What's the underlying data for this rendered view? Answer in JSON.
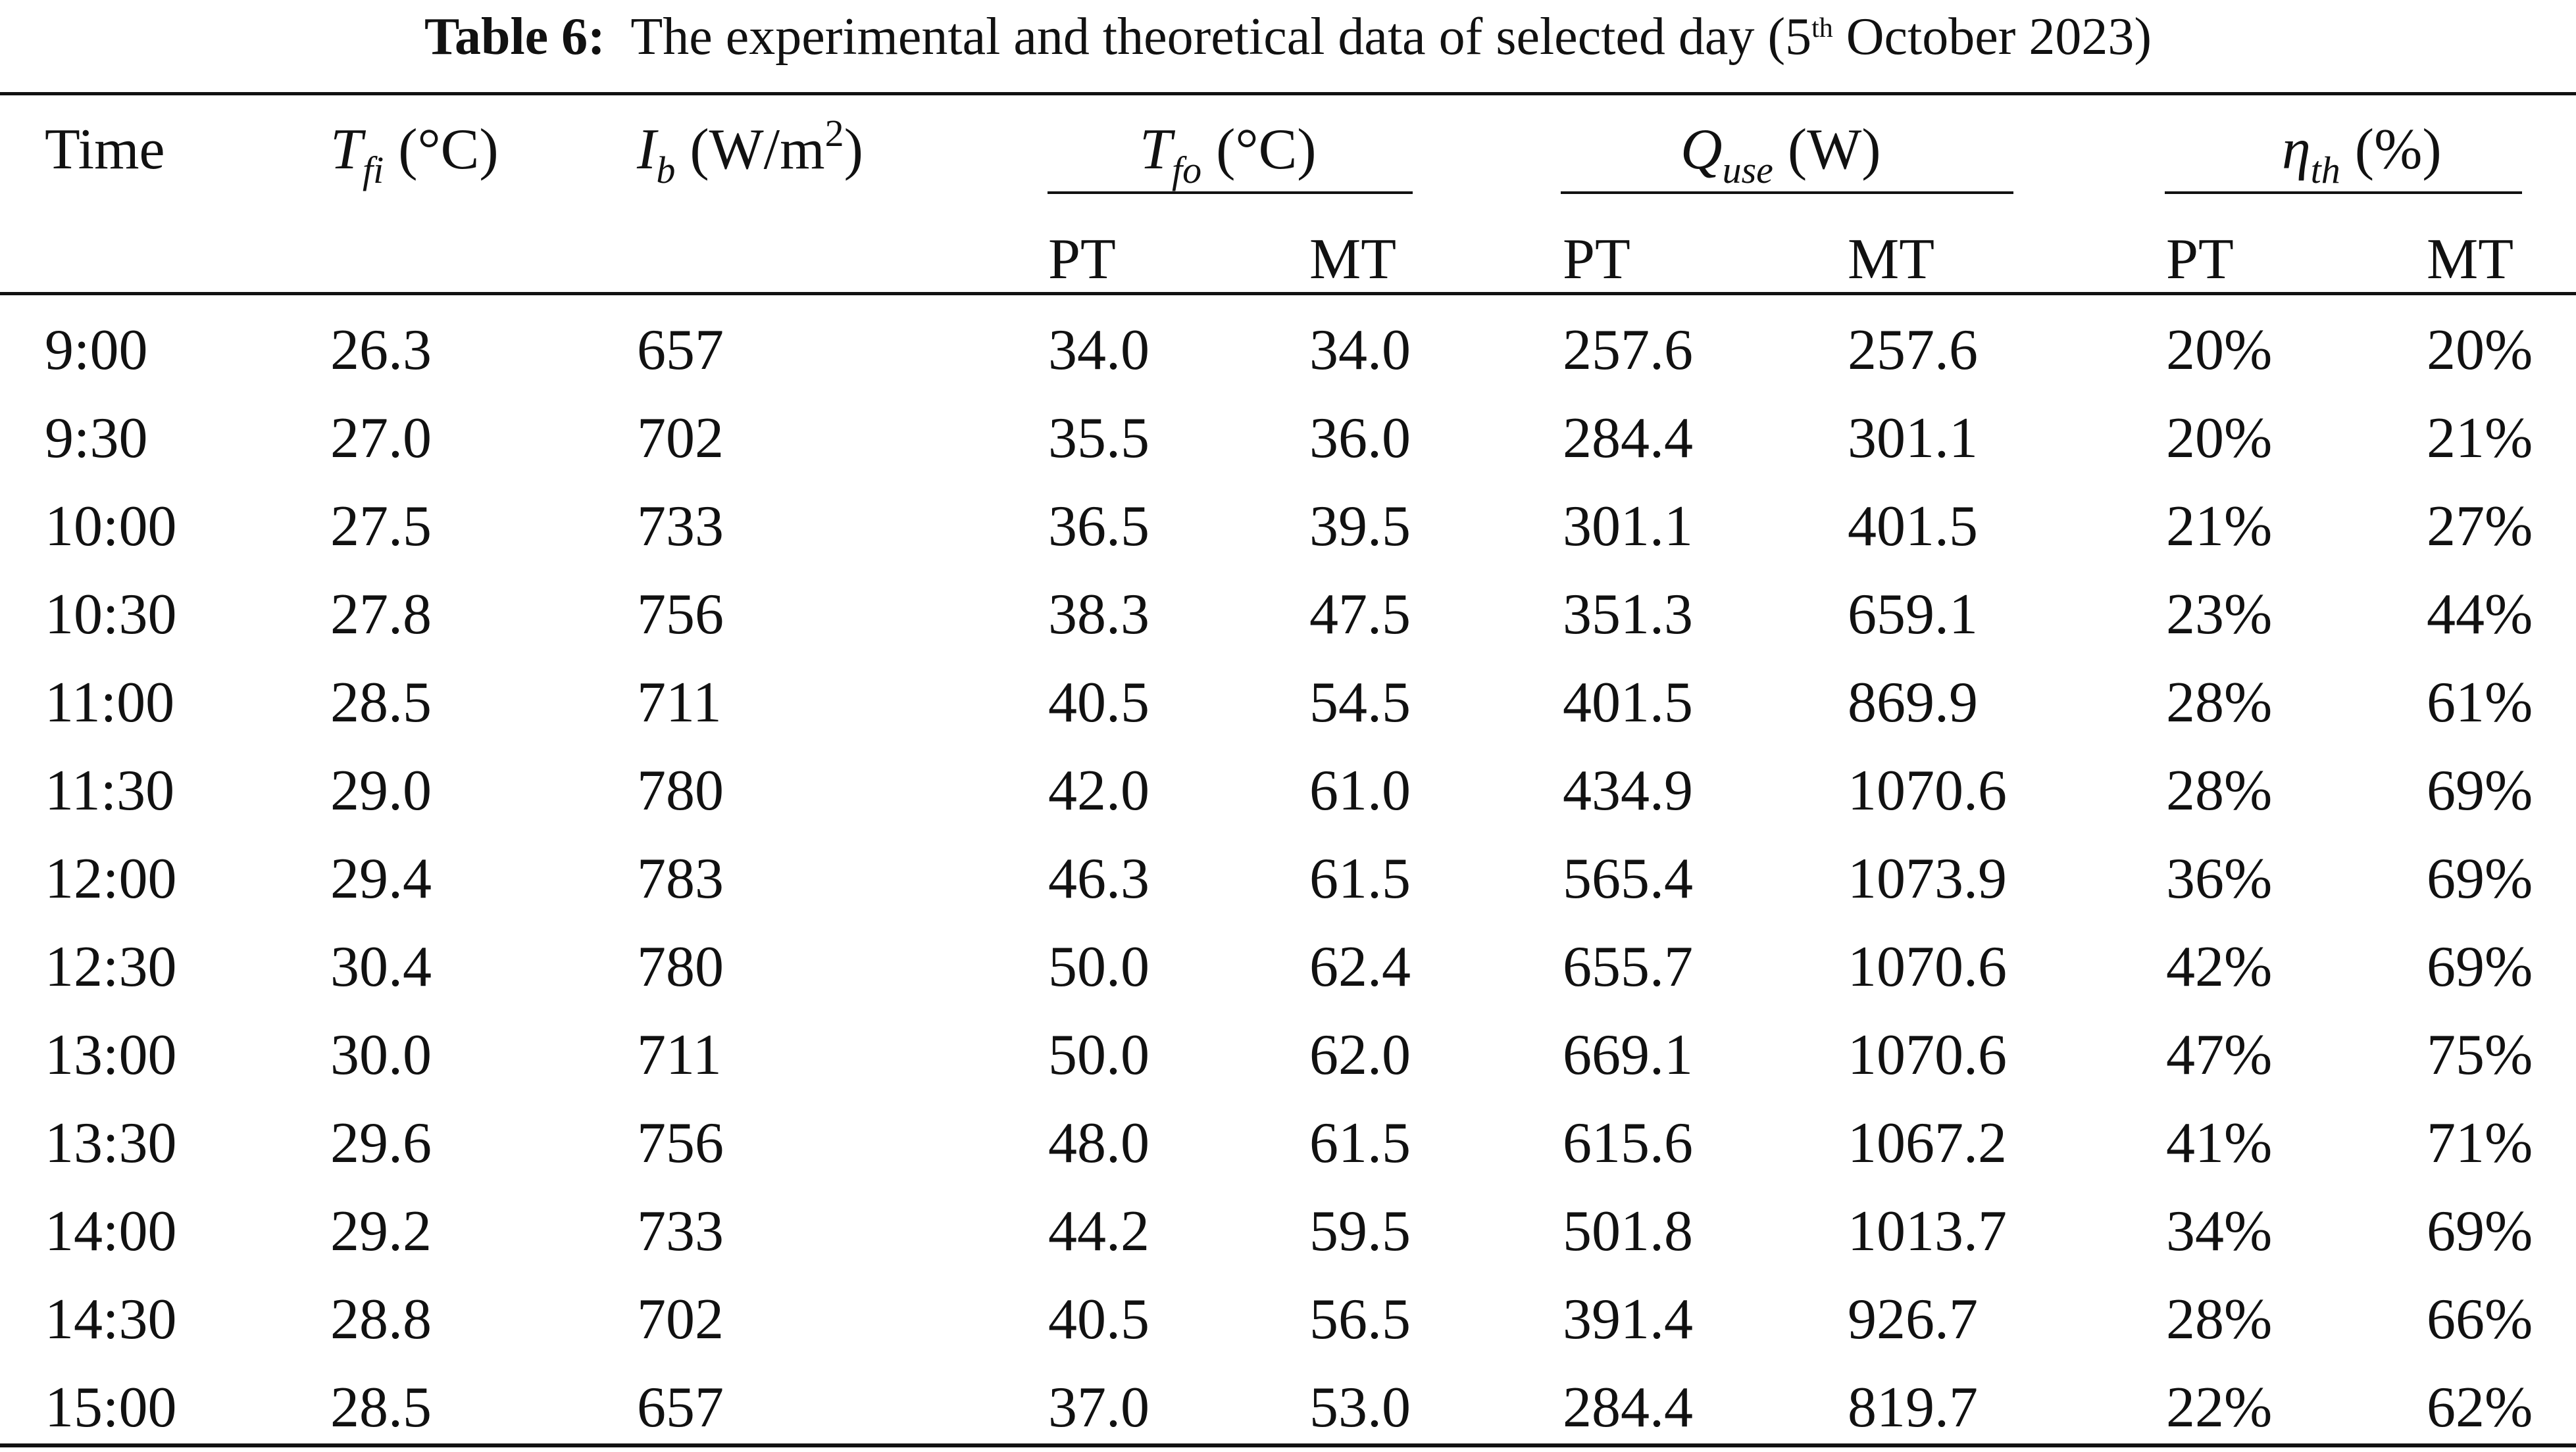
{
  "caption": {
    "label": "Table 6:",
    "text": "The experimental and theoretical data of selected day (5",
    "superscript": "th",
    "text_end": " October 2023)"
  },
  "header": {
    "time": "Time",
    "tfi": {
      "symbol": "T",
      "sub": "fi",
      "unit": " (°C)"
    },
    "ib": {
      "symbol": "I",
      "sub": "b",
      "unit": " (W/m",
      "unit_sup": "2",
      "unit_end": ")"
    },
    "tfo": {
      "symbol": "T",
      "sub": "fo",
      "unit": " (°C)"
    },
    "quse": {
      "symbol": "Q",
      "sub": "use",
      "unit": " (W)"
    },
    "eta": {
      "symbol": "η",
      "sub": "th",
      "unit": " (%)"
    },
    "pt": "PT",
    "mt": "MT"
  },
  "rows": [
    [
      "9:00",
      "26.3",
      "657",
      "34.0",
      "34.0",
      "257.6",
      "257.6",
      "20%",
      "20%"
    ],
    [
      "9:30",
      "27.0",
      "702",
      "35.5",
      "36.0",
      "284.4",
      "301.1",
      "20%",
      "21%"
    ],
    [
      "10:00",
      "27.5",
      "733",
      "36.5",
      "39.5",
      "301.1",
      "401.5",
      "21%",
      "27%"
    ],
    [
      "10:30",
      "27.8",
      "756",
      "38.3",
      "47.5",
      "351.3",
      "659.1",
      "23%",
      "44%"
    ],
    [
      "11:00",
      "28.5",
      "711",
      "40.5",
      "54.5",
      "401.5",
      "869.9",
      "28%",
      "61%"
    ],
    [
      "11:30",
      "29.0",
      "780",
      "42.0",
      "61.0",
      "434.9",
      "1070.6",
      "28%",
      "69%"
    ],
    [
      "12:00",
      "29.4",
      "783",
      "46.3",
      "61.5",
      "565.4",
      "1073.9",
      "36%",
      "69%"
    ],
    [
      "12:30",
      "30.4",
      "780",
      "50.0",
      "62.4",
      "655.7",
      "1070.6",
      "42%",
      "69%"
    ],
    [
      "13:00",
      "30.0",
      "711",
      "50.0",
      "62.0",
      "669.1",
      "1070.6",
      "47%",
      "75%"
    ],
    [
      "13:30",
      "29.6",
      "756",
      "48.0",
      "61.5",
      "615.6",
      "1067.2",
      "41%",
      "71%"
    ],
    [
      "14:00",
      "29.2",
      "733",
      "44.2",
      "59.5",
      "501.8",
      "1013.7",
      "34%",
      "69%"
    ],
    [
      "14:30",
      "28.8",
      "702",
      "40.5",
      "56.5",
      "391.4",
      "926.7",
      "28%",
      "66%"
    ],
    [
      "15:00",
      "28.5",
      "657",
      "37.0",
      "53.0",
      "284.4",
      "819.7",
      "22%",
      "62%"
    ]
  ]
}
